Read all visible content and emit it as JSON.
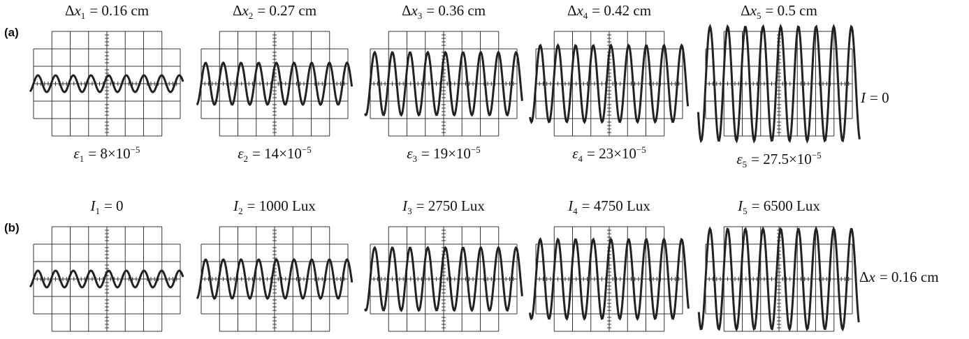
{
  "rows": [
    {
      "label": "(a)",
      "side_label": {
        "symbol": "I",
        "rest": "= 0"
      },
      "screens": [
        {
          "top": {
            "prefix": "Δ",
            "symbol": "x",
            "sub": "1",
            "rest": "= 0.16 cm"
          },
          "bottom": {
            "symbol": "ε",
            "sub": "1",
            "rest": "= 8×10",
            "sup": "−5"
          }
        },
        {
          "top": {
            "prefix": "Δ",
            "symbol": "x",
            "sub": "2",
            "rest": "= 0.27 cm"
          },
          "bottom": {
            "symbol": "ε",
            "sub": "2",
            "rest": "= 14×10",
            "sup": "−5"
          }
        },
        {
          "top": {
            "prefix": "Δ",
            "symbol": "x",
            "sub": "3",
            "rest": "= 0.36 cm"
          },
          "bottom": {
            "symbol": "ε",
            "sub": "3",
            "rest": "= 19×10",
            "sup": "−5"
          }
        },
        {
          "top": {
            "prefix": "Δ",
            "symbol": "x",
            "sub": "4",
            "rest": "= 0.42 cm"
          },
          "bottom": {
            "symbol": "ε",
            "sub": "4",
            "rest": "= 23×10",
            "sup": "−5"
          }
        },
        {
          "top": {
            "prefix": "Δ",
            "symbol": "x",
            "sub": "5",
            "rest": "= 0.5 cm"
          },
          "bottom": {
            "symbol": "ε",
            "sub": "5",
            "rest": "= 27.5×10",
            "sup": "−5"
          }
        }
      ]
    },
    {
      "label": "(b)",
      "side_label": {
        "prefix": "Δ",
        "symbol": "x",
        "rest": "= 0.16 cm"
      },
      "screens": [
        {
          "top": {
            "symbol": "I",
            "sub": "1",
            "rest": "= 0"
          }
        },
        {
          "top": {
            "symbol": "I",
            "sub": "2",
            "rest": "= 1000 Lux"
          }
        },
        {
          "top": {
            "symbol": "I",
            "sub": "3",
            "rest": "= 2750 Lux"
          }
        },
        {
          "top": {
            "symbol": "I",
            "sub": "4",
            "rest": "= 4750 Lux"
          }
        },
        {
          "top": {
            "symbol": "I",
            "sub": "5",
            "rest": "= 6500 Lux"
          }
        }
      ]
    }
  ]
}
